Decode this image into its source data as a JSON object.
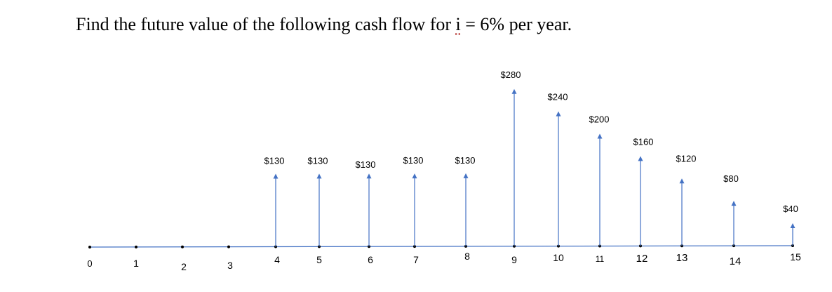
{
  "question": {
    "prefix": "Find the future value of the following cash flow for ",
    "variable": "i",
    "suffix": " = 6% per year."
  },
  "colors": {
    "timeline": "#4472c4",
    "arrow": "#4472c4",
    "text": "#000000",
    "point": "#000000"
  },
  "chart_data": {
    "type": "cash-flow-diagram",
    "periods": [
      "0",
      "1",
      "2",
      "3",
      "4",
      "5",
      "6",
      "7",
      "8",
      "9",
      "10",
      "11",
      "12",
      "13",
      "14",
      "15"
    ],
    "cash_flows": [
      {
        "period": 4,
        "label": "$130",
        "value": 130
      },
      {
        "period": 5,
        "label": "$130",
        "value": 130
      },
      {
        "period": 6,
        "label": "$130",
        "value": 130
      },
      {
        "period": 7,
        "label": "$130",
        "value": 130
      },
      {
        "period": 8,
        "label": "$130",
        "value": 130
      },
      {
        "period": 9,
        "label": "$280",
        "value": 280
      },
      {
        "period": 10,
        "label": "$240",
        "value": 240
      },
      {
        "period": 11,
        "label": "$200",
        "value": 200
      },
      {
        "period": 12,
        "label": "$160",
        "value": 160
      },
      {
        "period": 13,
        "label": "$120",
        "value": 120
      },
      {
        "period": 14,
        "label": "$80",
        "value": 80
      },
      {
        "period": 15,
        "label": "$40",
        "value": 40
      }
    ]
  }
}
